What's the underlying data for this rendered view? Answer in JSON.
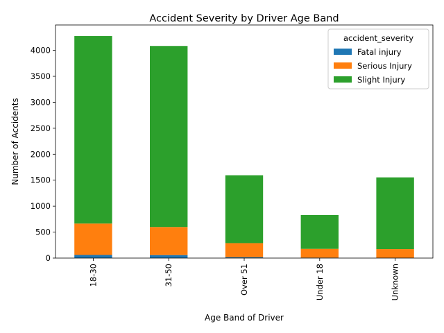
{
  "chart_data": {
    "type": "bar",
    "stacked": true,
    "title": "Accident Severity by Driver Age Band",
    "xlabel": "Age Band of Driver",
    "ylabel": "Number of Accidents",
    "categories": [
      "18-30",
      "31-50",
      "Over 51",
      "Under 18",
      "Unknown"
    ],
    "ylim": [
      0,
      4489
    ],
    "yticks": [
      0,
      500,
      1000,
      1500,
      2000,
      2500,
      3000,
      3500,
      4000
    ],
    "legend": {
      "title": "accident_severity",
      "position": "top-right"
    },
    "grid": false,
    "series": [
      {
        "name": "Fatal injury",
        "color": "#1f77b4",
        "values": [
          60,
          58,
          18,
          8,
          5
        ]
      },
      {
        "name": "Serious Injury",
        "color": "#ff7f0e",
        "values": [
          605,
          540,
          270,
          170,
          168
        ]
      },
      {
        "name": "Slight Injury",
        "color": "#2ca02c",
        "values": [
          3610,
          3487,
          1307,
          651,
          1381
        ]
      }
    ]
  }
}
